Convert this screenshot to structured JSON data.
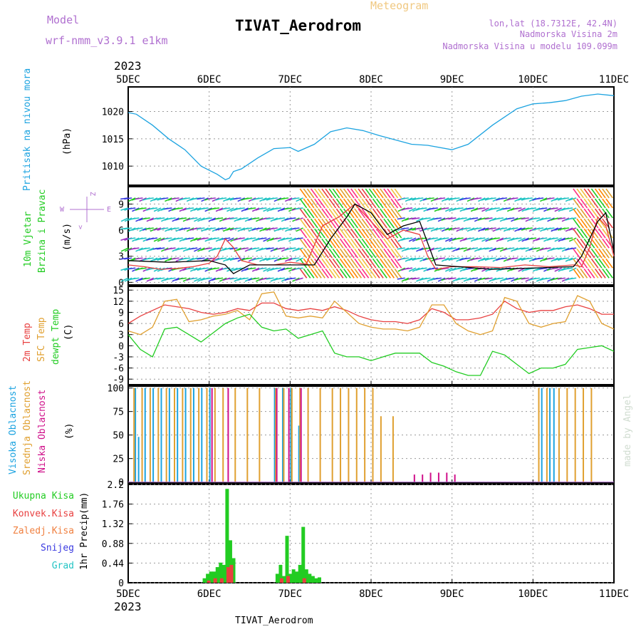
{
  "header": {
    "model_label": "Model",
    "model_name": "wrf-nmm_v3.9.1  e1km",
    "meteogram_label": "Meteogram",
    "station": "TIVAT_Aerodrom",
    "lonlat": "lon,lat (18.7312E, 42.4N)",
    "elevation": "Nadmorska Visina 2m",
    "model_elevation": "Nadmorska Visina u modelu 109.099m",
    "credit": "made by Angel",
    "footer_station": "TIVAT_Aerodrom"
  },
  "time_axis": {
    "year": "2023",
    "ticks": [
      "5DEC",
      "6DEC",
      "7DEC",
      "8DEC",
      "9DEC",
      "10DEC",
      "11DEC"
    ]
  },
  "colors": {
    "pressure": "#1ca3e0",
    "green": "#22cc22",
    "red": "#e84040",
    "orange": "#e0a030",
    "magenta": "#d0108a",
    "blue": "#3a3ae0",
    "cyan": "#22c4c4",
    "purple": "#b070d0"
  },
  "chart_data": [
    {
      "type": "line",
      "panel": "pressure",
      "label": "Pritisak na nivou mora",
      "unit": "(hPa)",
      "yticks": [
        1010,
        1015,
        1020
      ],
      "ylim": [
        1006.5,
        1024.5
      ],
      "series": [
        {
          "name": "Pritisak na nivou mora",
          "color_key": "pressure",
          "x": [
            0,
            0.1,
            0.3,
            0.5,
            0.7,
            0.9,
            1.1,
            1.2,
            1.25,
            1.3,
            1.4,
            1.6,
            1.8,
            2.0,
            2.1,
            2.3,
            2.5,
            2.7,
            2.9,
            3.1,
            3.3,
            3.5,
            3.7,
            4.0,
            4.2,
            4.5,
            4.8,
            5.0,
            5.2,
            5.4,
            5.6,
            5.8,
            6.0
          ],
          "y": [
            1019.8,
            1019.5,
            1017.5,
            1015.0,
            1013.0,
            1010.0,
            1008.5,
            1007.5,
            1007.8,
            1009.0,
            1009.5,
            1011.5,
            1013.2,
            1013.4,
            1012.7,
            1014.0,
            1016.3,
            1017.0,
            1016.5,
            1015.6,
            1014.8,
            1014.0,
            1013.8,
            1013.0,
            1014.0,
            1017.5,
            1020.5,
            1021.4,
            1021.6,
            1022.0,
            1022.8,
            1023.2,
            1022.9
          ]
        }
      ]
    },
    {
      "type": "line",
      "panel": "wind",
      "label_top": "10m Vjetar",
      "label_bottom": "Brzina i Pravac",
      "unit": "(m/s)",
      "compass": {
        "n": "Z",
        "s": "<",
        "w": "W",
        "e": "E"
      },
      "yticks": [
        0,
        3,
        6,
        9
      ],
      "ylim": [
        -0.3,
        11
      ],
      "series": [
        {
          "name": "10m wind speed",
          "color_key": "red",
          "x": [
            0,
            0.2,
            0.4,
            0.6,
            0.8,
            1.0,
            1.1,
            1.2,
            1.3,
            1.4,
            1.6,
            1.8,
            2.0,
            2.2,
            2.4,
            2.6,
            2.8,
            3.0,
            3.2,
            3.4,
            3.6,
            3.7,
            3.8,
            4.0,
            4.3,
            4.6,
            4.9,
            5.2,
            5.5,
            5.6,
            5.7,
            5.8,
            5.9,
            6.0
          ],
          "y": [
            2.0,
            1.8,
            1.5,
            1.6,
            1.8,
            2.2,
            3.0,
            5.0,
            4.0,
            2.5,
            2.0,
            2.0,
            2.3,
            2.1,
            6.5,
            7.5,
            9.0,
            7.0,
            5.0,
            6.0,
            5.5,
            3.0,
            1.5,
            1.8,
            1.8,
            1.7,
            2.0,
            1.8,
            2.0,
            1.8,
            4.0,
            7.5,
            6.5,
            3.0
          ]
        },
        {
          "name": "10m wind gust",
          "color_key": "black",
          "x": [
            0,
            0.5,
            1.0,
            1.2,
            1.3,
            1.5,
            2.0,
            2.3,
            2.5,
            2.7,
            2.8,
            3.0,
            3.2,
            3.4,
            3.6,
            3.8,
            4.5,
            5.5,
            5.6,
            5.8,
            5.9,
            6.0
          ],
          "y": [
            2.5,
            2.3,
            2.5,
            2.0,
            1.0,
            2.0,
            2.0,
            2.0,
            5.0,
            7.5,
            9.0,
            8.0,
            5.5,
            6.5,
            7.0,
            2.0,
            1.5,
            1.8,
            3.0,
            7.0,
            8.0,
            3.5
          ]
        }
      ]
    },
    {
      "type": "line",
      "panel": "temperature",
      "labels": [
        "2m Temp",
        "SFC Temp",
        "dewpt Temp"
      ],
      "unit": "(C)",
      "yticks": [
        -9,
        -6,
        -3,
        0,
        3,
        6,
        9,
        12,
        15
      ],
      "ylim": [
        -10.5,
        16
      ],
      "series": [
        {
          "name": "2m Temp",
          "color_key": "red",
          "x": [
            0,
            0.15,
            0.3,
            0.45,
            0.6,
            0.75,
            0.9,
            1.05,
            1.2,
            1.35,
            1.5,
            1.65,
            1.8,
            1.95,
            2.1,
            2.25,
            2.4,
            2.55,
            2.7,
            2.85,
            3.0,
            3.15,
            3.3,
            3.45,
            3.6,
            3.75,
            3.9,
            4.05,
            4.2,
            4.35,
            4.5,
            4.65,
            4.8,
            4.95,
            5.1,
            5.25,
            5.4,
            5.55,
            5.7,
            5.85,
            6.0
          ],
          "y": [
            6,
            8,
            9.5,
            11,
            10.5,
            10,
            9,
            8.5,
            9,
            10,
            9.5,
            11.5,
            11.5,
            10,
            9.5,
            10,
            9.5,
            10.5,
            9.5,
            8,
            7,
            6.5,
            6.5,
            6,
            7,
            10,
            9,
            7,
            7,
            7.5,
            8.5,
            12,
            10,
            9,
            9.5,
            9.5,
            10.5,
            11,
            10,
            8.5,
            8.5
          ]
        },
        {
          "name": "SFC Temp",
          "color_key": "orange",
          "x": [
            0,
            0.15,
            0.3,
            0.45,
            0.6,
            0.75,
            0.9,
            1.05,
            1.2,
            1.35,
            1.5,
            1.65,
            1.8,
            1.95,
            2.1,
            2.25,
            2.4,
            2.55,
            2.7,
            2.85,
            3.0,
            3.15,
            3.3,
            3.45,
            3.6,
            3.75,
            3.9,
            4.05,
            4.2,
            4.35,
            4.5,
            4.65,
            4.8,
            4.95,
            5.1,
            5.25,
            5.4,
            5.55,
            5.7,
            5.85,
            6.0
          ],
          "y": [
            4,
            3,
            5,
            12,
            12.5,
            6.5,
            7,
            8,
            8.5,
            9.5,
            7,
            14,
            14.5,
            8,
            7.5,
            8,
            7.5,
            12,
            9,
            6,
            5,
            4.5,
            4.5,
            4,
            5,
            11,
            11,
            6,
            4,
            3,
            4,
            13,
            12,
            6,
            5,
            6,
            6.5,
            13.5,
            12,
            6,
            4.5
          ]
        },
        {
          "name": "dewpt Temp",
          "color_key": "green",
          "x": [
            0,
            0.15,
            0.3,
            0.45,
            0.6,
            0.75,
            0.9,
            1.05,
            1.2,
            1.35,
            1.5,
            1.65,
            1.8,
            1.95,
            2.1,
            2.25,
            2.4,
            2.55,
            2.7,
            2.85,
            3.0,
            3.15,
            3.3,
            3.45,
            3.6,
            3.75,
            3.9,
            4.05,
            4.2,
            4.35,
            4.5,
            4.65,
            4.8,
            4.95,
            5.1,
            5.25,
            5.4,
            5.55,
            5.7,
            5.85,
            6.0
          ],
          "y": [
            3,
            -1,
            -3,
            4.5,
            5,
            3,
            1,
            3.5,
            6,
            7.5,
            8.5,
            5,
            4,
            4.5,
            2,
            3,
            4,
            -2,
            -3,
            -3,
            -4,
            -3,
            -2,
            -2,
            -2,
            -4.5,
            -5.5,
            -7,
            -8,
            -8,
            -1.5,
            -2.5,
            -5,
            -7.5,
            -6,
            -6,
            -5,
            -1,
            -0.5,
            0,
            -1.5
          ]
        }
      ]
    },
    {
      "type": "bar",
      "panel": "clouds",
      "labels": [
        "Visoka Oblacnost",
        "Srednja Oblacnost",
        "Niska Oblacnost"
      ],
      "unit": "(%)",
      "yticks": [
        0,
        25,
        50,
        75,
        100
      ],
      "ylim": [
        -1,
        102
      ],
      "x_segments": [
        [
          0.05,
          1.05
        ],
        [
          1.78,
          2.2
        ],
        [
          5.1,
          5.4
        ]
      ],
      "series": [
        {
          "name": "Visoka Oblacnost",
          "color_key": "pressure",
          "x": [
            0.08,
            0.12,
            0.2,
            0.3,
            0.4,
            0.5,
            0.6,
            0.7,
            0.8,
            0.9,
            1.0,
            1.8,
            1.9,
            2.0,
            2.1,
            5.1,
            5.2,
            5.25
          ],
          "values": [
            100,
            48,
            100,
            100,
            100,
            100,
            100,
            100,
            100,
            100,
            100,
            100,
            100,
            100,
            60,
            100,
            100,
            100
          ]
        },
        {
          "name": "Srednja Oblacnost",
          "color_key": "orange",
          "x": [
            0.05,
            0.15,
            0.25,
            0.35,
            0.45,
            0.55,
            0.65,
            0.75,
            0.85,
            0.95,
            1.05,
            1.15,
            1.3,
            1.45,
            1.6,
            1.8,
            1.9,
            2.0,
            2.1,
            2.2,
            2.35,
            2.5,
            2.6,
            2.7,
            2.8,
            2.9,
            3.0,
            3.1,
            3.25,
            5.05,
            5.15,
            5.3,
            5.4,
            5.5,
            5.6,
            5.7
          ],
          "values": [
            100,
            100,
            100,
            100,
            100,
            100,
            100,
            100,
            100,
            100,
            100,
            100,
            100,
            100,
            100,
            100,
            100,
            100,
            100,
            100,
            100,
            100,
            100,
            100,
            100,
            100,
            100,
            70,
            70,
            100,
            100,
            100,
            100,
            100,
            100,
            100
          ]
        },
        {
          "name": "Niska Oblacnost",
          "color_key": "magenta",
          "x": [
            1.0,
            1.2,
            1.8,
            1.95,
            2.1,
            3.5,
            3.6,
            3.7,
            3.8,
            3.9,
            4.0
          ],
          "values": [
            100,
            100,
            100,
            100,
            100,
            8,
            8,
            10,
            10,
            10,
            8
          ]
        }
      ]
    },
    {
      "type": "bar",
      "panel": "precip",
      "labels": [
        "Ukupna Kisa",
        "Konvek.Kisa",
        "Zaledj.Kisa",
        "Snijeg",
        "Grad"
      ],
      "unit_top": "1hr Precip",
      "unit_bottom": "(mm)",
      "yticks": [
        0,
        0.44,
        0.88,
        1.32,
        1.76,
        2.2
      ],
      "ylim": [
        0,
        2.2
      ],
      "series": [
        {
          "name": "Ukupna Kisa",
          "color_key": "green",
          "x": [
            0.92,
            0.96,
            1.0,
            1.04,
            1.08,
            1.12,
            1.16,
            1.2,
            1.24,
            1.28,
            1.82,
            1.86,
            1.9,
            1.94,
            1.98,
            2.02,
            2.06,
            2.1,
            2.14,
            2.18,
            2.22,
            2.26,
            2.3,
            2.34
          ],
          "values": [
            0.1,
            0.2,
            0.25,
            0.25,
            0.35,
            0.45,
            0.4,
            2.1,
            0.95,
            0.55,
            0.2,
            0.4,
            0.15,
            1.05,
            0.2,
            0.3,
            0.25,
            0.4,
            1.25,
            0.3,
            0.2,
            0.15,
            0.1,
            0.12
          ]
        },
        {
          "name": "Konvek.Kisa",
          "color_key": "red",
          "x": [
            0.96,
            1.04,
            1.12,
            1.2,
            1.24,
            1.86,
            1.94,
            2.14
          ],
          "values": [
            0.05,
            0.1,
            0.1,
            0.35,
            0.4,
            0.1,
            0.15,
            0.1
          ]
        }
      ]
    }
  ]
}
